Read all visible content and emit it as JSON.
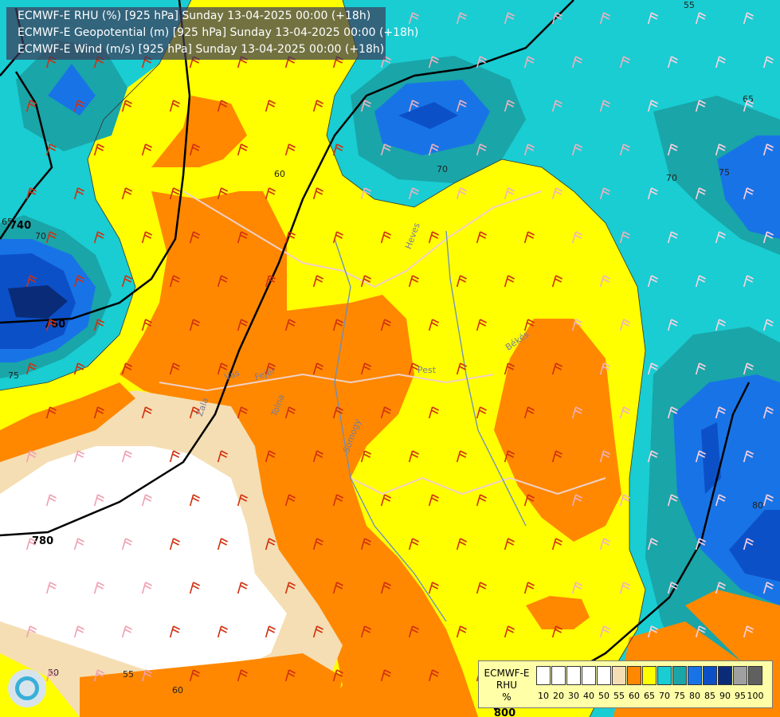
{
  "titles": [
    "ECMWF-E RHU (%) [925 hPa] Sunday 13-04-2025 00:00 (+18h)",
    "ECMWF-E Geopotential (m) [925 hPa] Sunday 13-04-2025 00:00 (+18h)",
    "ECMWF-E Wind (m/s) [925 hPa] Sunday 13-04-2025 00:00 (+18h)"
  ],
  "legend": {
    "model": "ECMWF-E",
    "variable": "RHU",
    "unit": "%",
    "classes": [
      {
        "label": "10",
        "color": "#ffffff"
      },
      {
        "label": "20",
        "color": "#ffffff"
      },
      {
        "label": "30",
        "color": "#ffffff"
      },
      {
        "label": "40",
        "color": "#ffffff"
      },
      {
        "label": "50",
        "color": "#ffffff"
      },
      {
        "label": "55",
        "color": "#f5deb3"
      },
      {
        "label": "60",
        "color": "#ff8800"
      },
      {
        "label": "65",
        "color": "#ffff00"
      },
      {
        "label": "70",
        "color": "#19cdd2"
      },
      {
        "label": "75",
        "color": "#1aa5a8"
      },
      {
        "label": "80",
        "color": "#1874e6"
      },
      {
        "label": "85",
        "color": "#0c50c8"
      },
      {
        "label": "90",
        "color": "#0a2c78"
      },
      {
        "label": "95",
        "color": "#a0a0a0"
      },
      {
        "label": "100",
        "color": "#606060"
      }
    ]
  },
  "geopotential_labels": [
    "740",
    "760",
    "780",
    "800"
  ],
  "rhu_contour_labels": [
    "55",
    "65",
    "70",
    "70",
    "75",
    "75",
    "70",
    "65",
    "50",
    "55",
    "60",
    "80",
    "60"
  ],
  "place_labels": [
    "Pest",
    "Heves",
    "Békés",
    "Tolna",
    "Fejér",
    "Vas",
    "Zala",
    "Somogy"
  ],
  "colors": {
    "white": "#ffffff",
    "wheat": "#f5deb3",
    "orange": "#ff8800",
    "yellow": "#ffff00",
    "cyan": "#19cdd2",
    "teal": "#1aa5a8",
    "blue": "#1874e6",
    "darkblue": "#0c50c8",
    "navy": "#0a2c78",
    "title_bg": "#3c3c5a",
    "legend_bg": "#ffffa8"
  },
  "icons": {
    "logo": "swirl-logo-icon"
  }
}
